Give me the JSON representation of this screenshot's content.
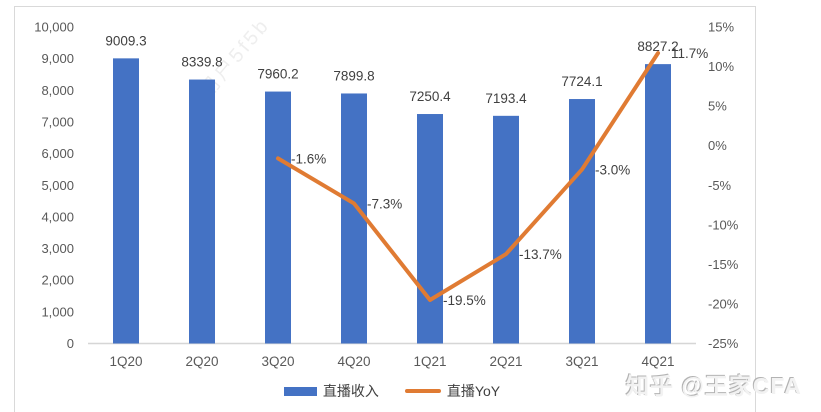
{
  "watermarks": {
    "diagonal": "用户5f5b",
    "bottom_right": "知乎 @王家CFA"
  },
  "chart_data": {
    "type": "combo-bar-line",
    "title": "",
    "categories": [
      "1Q20",
      "2Q20",
      "3Q20",
      "4Q20",
      "1Q21",
      "2Q21",
      "3Q21",
      "4Q21"
    ],
    "series": [
      {
        "name": "直播收入",
        "type": "bar",
        "axis": "left",
        "color": "#4472C4",
        "values": [
          9009.3,
          8339.8,
          7960.2,
          7899.8,
          7250.4,
          7193.4,
          7724.1,
          8827.2
        ],
        "labels": [
          "9009.3",
          "8339.8",
          "7960.2",
          "7899.8",
          "7250.4",
          "7193.4",
          "7724.1",
          "8827.2"
        ]
      },
      {
        "name": "直播YoY",
        "type": "line",
        "axis": "right",
        "color": "#E07B33",
        "values": [
          null,
          null,
          -1.6,
          -7.3,
          -19.5,
          -13.7,
          -3.0,
          11.7
        ],
        "labels": [
          null,
          null,
          "-1.6%",
          "-7.3%",
          "-19.5%",
          "-13.7%",
          "-3.0%",
          "11.7%"
        ]
      }
    ],
    "left_axis": {
      "min": 0,
      "max": 10000,
      "tick_values": [
        0,
        1000,
        2000,
        3000,
        4000,
        5000,
        6000,
        7000,
        8000,
        9000,
        10000
      ],
      "tick_labels": [
        "0",
        "1,000",
        "2,000",
        "3,000",
        "4,000",
        "5,000",
        "6,000",
        "7,000",
        "8,000",
        "9,000",
        "10,000"
      ]
    },
    "right_axis": {
      "min": -25,
      "max": 15,
      "tick_values": [
        15,
        10,
        5,
        0,
        -5,
        -10,
        -15,
        -20,
        -25
      ],
      "tick_labels": [
        "15%",
        "10%",
        "5%",
        "0%",
        "-5%",
        "-10%",
        "-15%",
        "-20%",
        "-25%"
      ]
    },
    "grid": "off",
    "legend_position": "bottom",
    "colors": {
      "bar": "#4472C4",
      "line": "#E07B33",
      "tick_text": "#595959",
      "label_text": "#404040",
      "axis_line": "#d6d6d6"
    }
  }
}
